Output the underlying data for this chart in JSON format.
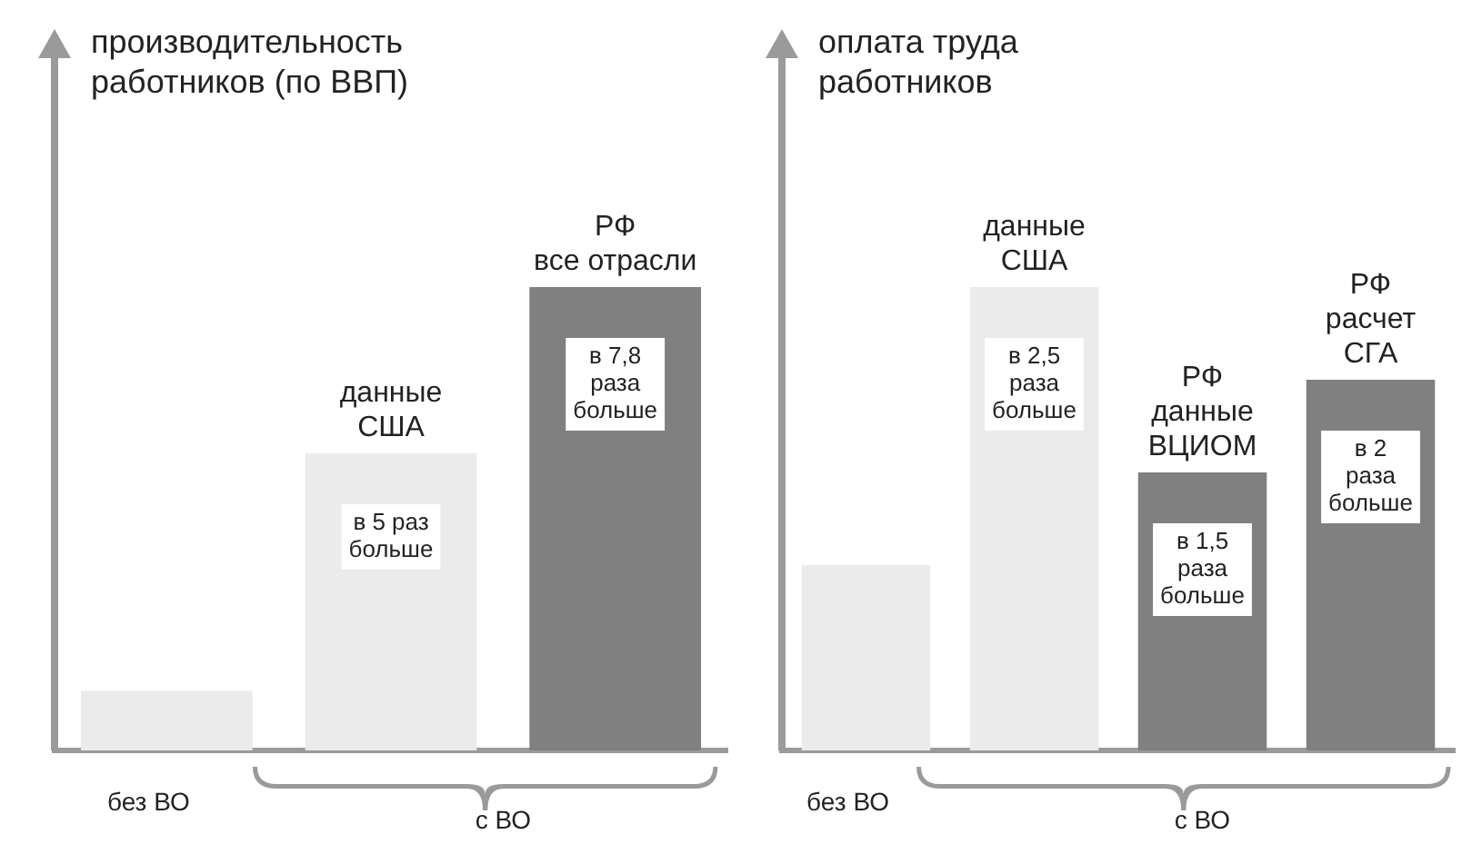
{
  "chart_data": [
    {
      "type": "bar",
      "title": "производительность\nработников (по ВВП)",
      "categories": [
        null,
        "данные\nСША",
        "РФ\nвсе отрасли"
      ],
      "values": [
        1,
        5,
        7.8
      ],
      "colors": [
        "#ebebeb",
        "#ebebeb",
        "#808080"
      ],
      "value_labels": [
        null,
        "в 5 раз\nбольше",
        "в 7,8\nраза\nбольше"
      ],
      "annotations": [
        "без ВО",
        "с ВО"
      ],
      "grid": false,
      "legend": false
    },
    {
      "type": "bar",
      "title": "оплата труда\nработников",
      "categories": [
        null,
        "данные\nСША",
        "РФ\nданные\nВЦИОМ",
        "РФ\nрасчет\nСГА"
      ],
      "values": [
        1,
        2.5,
        1.5,
        2
      ],
      "colors": [
        "#ebebeb",
        "#ebebeb",
        "#808080",
        "#808080"
      ],
      "value_labels": [
        null,
        "в 2,5\nраза\nбольше",
        "в 1,5\nраза\nбольше",
        "в 2\nраза\nбольше"
      ],
      "annotations": [
        "без ВО",
        "с ВО"
      ],
      "grid": false,
      "legend": false
    }
  ]
}
